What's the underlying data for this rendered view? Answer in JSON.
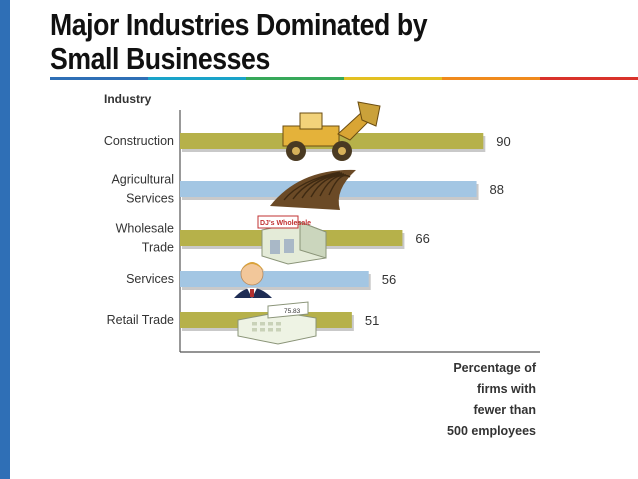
{
  "slide": {
    "title_line1": "Major Industries Dominated by",
    "title_line2": "Small Businesses",
    "rule_colors": [
      "#2f6fb6",
      "#1aa3c9",
      "#37a85a",
      "#e3c021",
      "#f08a1c",
      "#d9322a"
    ]
  },
  "chart_data": {
    "type": "bar",
    "orientation": "horizontal",
    "ylabel": "Industry",
    "xlabel": [
      "Percentage of",
      "firms with",
      "fewer than",
      "500 employees"
    ],
    "categories": [
      [
        "Construction"
      ],
      [
        "Agricultural",
        "Services"
      ],
      [
        "Wholesale",
        "Trade"
      ],
      [
        "Services"
      ],
      [
        "Retail Trade"
      ]
    ],
    "values": [
      90,
      88,
      66,
      56,
      51
    ],
    "data_labels": [
      "90",
      "88",
      "66",
      "56",
      "51"
    ],
    "bar_colors": [
      "#b6b14a",
      "#a3c6e3",
      "#b6b14a",
      "#a3c6e3",
      "#b6b14a"
    ],
    "xlim": [
      0,
      100
    ],
    "grid": false,
    "illustrations": [
      {
        "icon": "bulldozer-icon"
      },
      {
        "icon": "plowed-field-icon"
      },
      {
        "icon": "wholesale-store-icon",
        "text": "DJ's Wholesale"
      },
      {
        "icon": "businessman-icon"
      },
      {
        "icon": "cash-register-icon",
        "text": "75.83"
      }
    ]
  }
}
